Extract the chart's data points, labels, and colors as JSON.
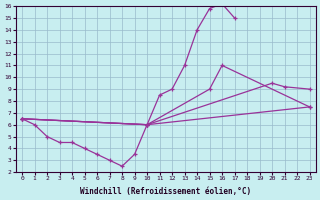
{
  "xlabel": "Windchill (Refroidissement éolien,°C)",
  "background_color": "#c8eef0",
  "line_color": "#993399",
  "grid_color": "#99bbcc",
  "xlim": [
    -0.5,
    23.5
  ],
  "ylim": [
    2,
    16
  ],
  "xticks": [
    0,
    1,
    2,
    3,
    4,
    5,
    6,
    7,
    8,
    9,
    10,
    11,
    12,
    13,
    14,
    15,
    16,
    17,
    18,
    19,
    20,
    21,
    22,
    23
  ],
  "yticks": [
    2,
    3,
    4,
    5,
    6,
    7,
    8,
    9,
    10,
    11,
    12,
    13,
    14,
    15,
    16
  ],
  "series": [
    {
      "x": [
        0,
        1,
        2,
        3,
        4,
        5,
        6,
        7,
        8,
        9,
        10,
        11,
        12,
        13,
        14,
        15,
        16,
        17
      ],
      "y": [
        6.5,
        6.0,
        5.0,
        4.5,
        4.5,
        4.0,
        3.5,
        3.0,
        2.5,
        3.5,
        6.0,
        8.5,
        9.0,
        11.0,
        14.0,
        15.8,
        16.2,
        15.0
      ]
    },
    {
      "x": [
        0,
        10,
        15,
        16,
        23
      ],
      "y": [
        6.5,
        6.0,
        9.0,
        11.0,
        7.5
      ]
    },
    {
      "x": [
        0,
        10,
        20,
        21,
        23
      ],
      "y": [
        6.5,
        6.0,
        9.5,
        9.2,
        9.0
      ]
    },
    {
      "x": [
        0,
        10,
        23
      ],
      "y": [
        6.5,
        6.0,
        7.5
      ]
    }
  ]
}
